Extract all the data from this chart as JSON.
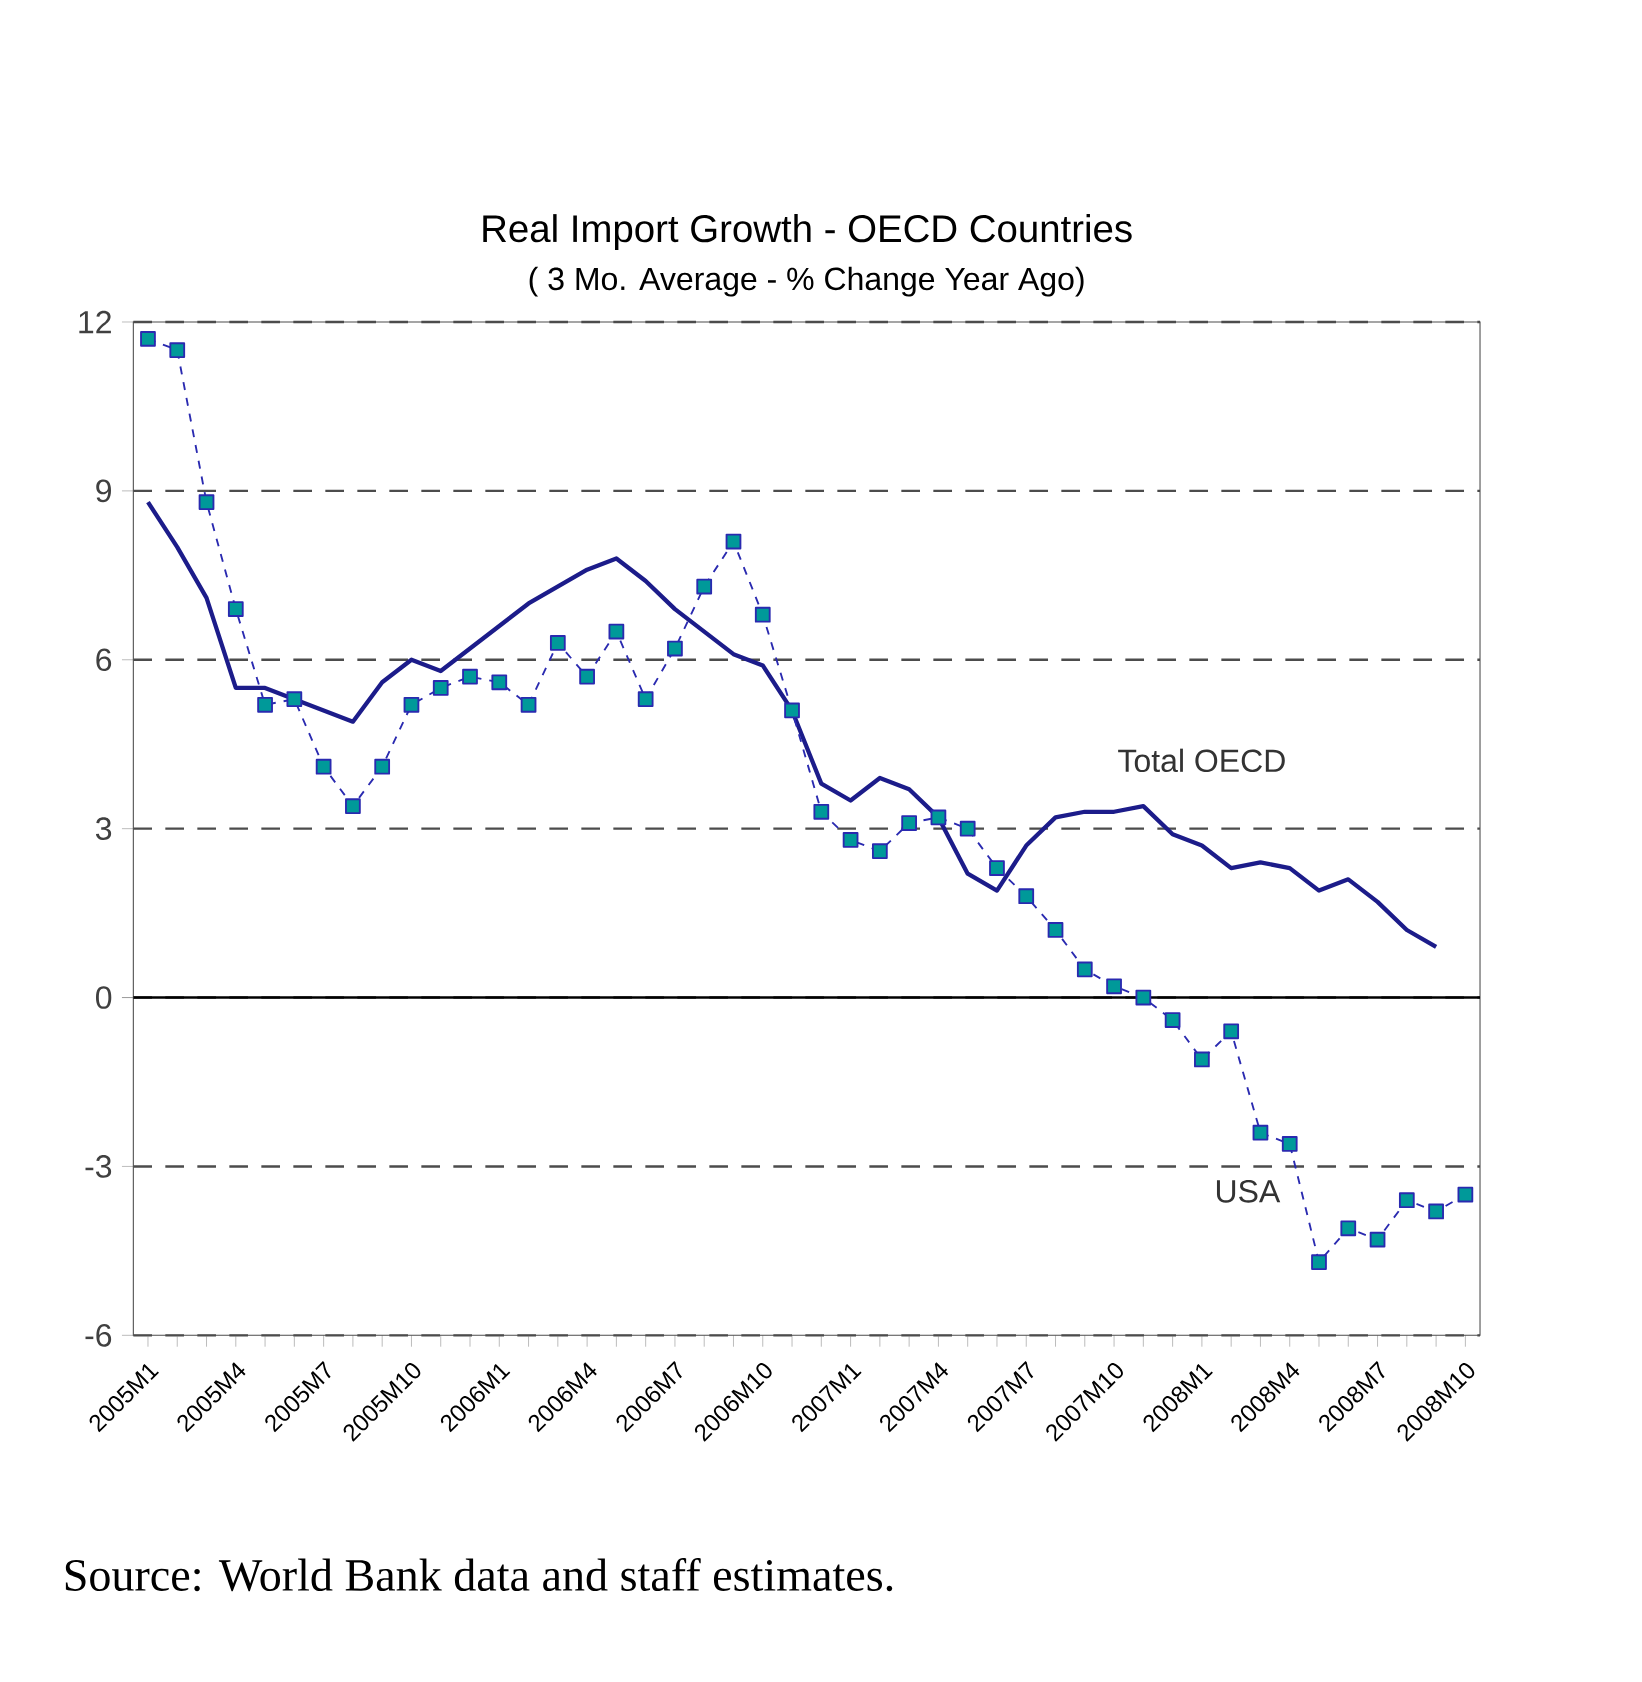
{
  "chart_data": {
    "type": "line",
    "title": "Real Import Growth - OECD Countries",
    "subtitle": "( 3 Mo. Average - % Change Year Ago)",
    "categories": [
      "2005M1",
      null,
      null,
      "2005M4",
      null,
      null,
      "2005M7",
      null,
      null,
      "2005M10",
      null,
      null,
      "2006M1",
      null,
      null,
      "2006M4",
      null,
      null,
      "2006M7",
      null,
      null,
      "2006M10",
      null,
      null,
      "2007M1",
      null,
      null,
      "2007M4",
      null,
      null,
      "2007M7",
      null,
      null,
      "2007M10",
      null,
      null,
      "2008M1",
      null,
      null,
      "2008M4",
      null,
      null,
      "2008M7",
      null,
      null,
      "2008M10"
    ],
    "series": [
      {
        "name": "Total OECD",
        "color": "#1c1c8a",
        "line_style": "solid",
        "marker": "none",
        "values": [
          8.8,
          8.0,
          7.1,
          5.5,
          5.5,
          5.3,
          5.1,
          4.9,
          5.6,
          6.0,
          5.8,
          6.2,
          6.6,
          7.0,
          7.3,
          7.6,
          7.8,
          7.4,
          6.9,
          6.5,
          6.1,
          5.9,
          5.1,
          3.8,
          3.5,
          3.9,
          3.7,
          3.2,
          2.2,
          1.9,
          2.7,
          3.2,
          3.3,
          3.3,
          3.4,
          2.9,
          2.7,
          2.3,
          2.4,
          2.3,
          1.9,
          2.1,
          1.7,
          1.2,
          0.9,
          null
        ]
      },
      {
        "name": "USA",
        "color": "#2a2ab0",
        "line_style": "dashed",
        "marker": "square",
        "values": [
          11.7,
          11.5,
          8.8,
          6.9,
          5.2,
          5.3,
          4.1,
          3.4,
          4.1,
          5.2,
          5.5,
          5.7,
          5.6,
          5.2,
          6.3,
          5.7,
          6.5,
          5.3,
          6.2,
          7.3,
          8.1,
          6.8,
          5.1,
          3.3,
          2.8,
          2.6,
          3.1,
          3.2,
          3.0,
          2.3,
          1.8,
          1.2,
          0.5,
          0.2,
          0.0,
          -0.4,
          -1.1,
          -0.6,
          -2.4,
          -2.6,
          -4.7,
          -4.1,
          -4.3,
          -3.6,
          -3.8,
          -3.5
        ]
      }
    ],
    "ylim": [
      -6,
      12
    ],
    "yticks": [
      -6,
      -3,
      0,
      3,
      6,
      9,
      12
    ],
    "grid": "y",
    "legend": false,
    "annotations": [
      "Source: World Bank data and staff estimates."
    ]
  }
}
